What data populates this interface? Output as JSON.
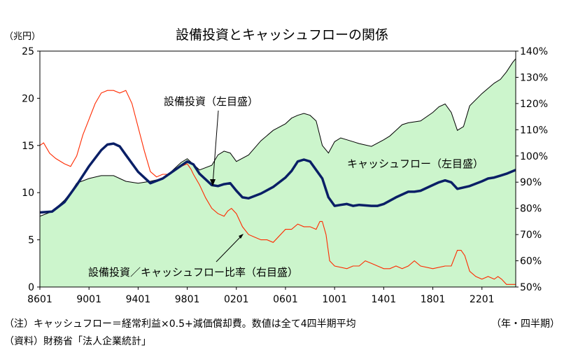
{
  "chart_data": {
    "type": "area",
    "title": "設備投資とキャッシュフローの関係",
    "left_unit": "（兆円）",
    "left_ylim": [
      0,
      25
    ],
    "left_ticks": [
      "0",
      "5",
      "10",
      "15",
      "20",
      "25"
    ],
    "right_ylim": [
      50,
      140
    ],
    "right_ticks": [
      "50%",
      "60%",
      "70%",
      "80%",
      "90%",
      "100%",
      "110%",
      "120%",
      "130%",
      "140%"
    ],
    "x_range": [
      1986.0,
      2024.75
    ],
    "x_ticks": [
      "8601",
      "9001",
      "9401",
      "9801",
      "0201",
      "0601",
      "1001",
      "1401",
      "1801",
      "2201"
    ],
    "x_unit": "（年・四半期）",
    "annotations": {
      "capex": "設備投資（左目盛）",
      "cashflow": "キャッシュフロー（左目盛）",
      "ratio": "設備投資／キャッシュフロー比率（右目盛）"
    },
    "note": "（注）キャッシュフロー＝経常利益×0.5+減価償却費。数値は全て4四半期平均",
    "source": "（資料）財務省「法人企業統計」",
    "colors": {
      "cashflow_fill": "#ccf5cc",
      "capex_line": "#0a1f66",
      "ratio_line": "#ff2a00"
    },
    "series": [
      {
        "name": "キャッシュフロー（左目盛）",
        "axis": "left",
        "style": "area",
        "x": [
          1986.0,
          1987.0,
          1988.0,
          1988.5,
          1989.0,
          1990.0,
          1991.0,
          1992.0,
          1992.5,
          1993.0,
          1994.0,
          1995.0,
          1996.0,
          1996.5,
          1997.0,
          1997.5,
          1998.0,
          1998.5,
          1999.0,
          2000.0,
          2000.5,
          2001.0,
          2001.5,
          2002.0,
          2003.0,
          2004.0,
          2005.0,
          2006.0,
          2006.5,
          2007.0,
          2007.5,
          2008.0,
          2008.5,
          2009.0,
          2009.5,
          2010.0,
          2010.5,
          2011.0,
          2012.0,
          2013.0,
          2014.0,
          2014.5,
          2015.0,
          2015.5,
          2016.0,
          2017.0,
          2018.0,
          2018.5,
          2019.0,
          2019.5,
          2020.0,
          2020.5,
          2021.0,
          2022.0,
          2023.0,
          2023.5,
          2024.0,
          2024.5,
          2024.75
        ],
        "values": [
          7.5,
          8.0,
          9.2,
          10.0,
          11.0,
          11.5,
          11.8,
          11.8,
          11.5,
          11.2,
          11.0,
          11.2,
          11.5,
          12.0,
          12.6,
          13.2,
          13.6,
          13.0,
          12.4,
          12.9,
          14.0,
          14.4,
          14.2,
          13.3,
          14.0,
          15.5,
          16.6,
          17.3,
          17.9,
          18.2,
          18.4,
          18.2,
          17.6,
          15.0,
          14.2,
          15.4,
          15.8,
          15.6,
          15.2,
          14.9,
          15.6,
          16.0,
          16.6,
          17.2,
          17.4,
          17.6,
          18.5,
          19.1,
          19.4,
          18.5,
          16.6,
          17.0,
          19.2,
          20.5,
          21.6,
          22.0,
          22.8,
          23.8,
          24.2
        ]
      },
      {
        "name": "設備投資（左目盛）",
        "axis": "left",
        "style": "line",
        "x": [
          1986.0,
          1987.0,
          1988.0,
          1989.0,
          1990.0,
          1991.0,
          1991.5,
          1992.0,
          1992.5,
          1993.0,
          1994.0,
          1995.0,
          1996.0,
          1997.0,
          1998.0,
          1998.5,
          1999.0,
          2000.0,
          2000.5,
          2001.0,
          2001.5,
          2002.0,
          2002.5,
          2003.0,
          2004.0,
          2005.0,
          2006.0,
          2006.5,
          2007.0,
          2007.5,
          2008.0,
          2009.0,
          2009.5,
          2010.0,
          2010.5,
          2011.0,
          2011.5,
          2012.0,
          2013.0,
          2013.5,
          2014.0,
          2015.0,
          2016.0,
          2016.5,
          2017.0,
          2018.0,
          2018.5,
          2019.0,
          2019.5,
          2020.0,
          2021.0,
          2022.0,
          2022.5,
          2023.0,
          2023.5,
          2024.0,
          2024.75
        ],
        "values": [
          7.9,
          8.0,
          9.0,
          10.8,
          12.8,
          14.5,
          15.1,
          15.2,
          14.9,
          14.0,
          12.2,
          11.0,
          11.5,
          12.4,
          13.3,
          13.0,
          12.0,
          10.8,
          10.7,
          10.9,
          11.0,
          10.2,
          9.5,
          9.4,
          9.9,
          10.6,
          11.6,
          12.3,
          13.3,
          13.5,
          13.3,
          11.5,
          9.5,
          8.6,
          8.7,
          8.8,
          8.6,
          8.7,
          8.6,
          8.6,
          8.8,
          9.5,
          10.1,
          10.1,
          10.2,
          10.8,
          11.1,
          11.3,
          11.1,
          10.4,
          10.7,
          11.2,
          11.5,
          11.6,
          11.8,
          12.0,
          12.4
        ]
      },
      {
        "name": "設備投資／キャッシュフロー比率（右目盛）",
        "axis": "right",
        "style": "line",
        "x": [
          1986.0,
          1986.3,
          1986.8,
          1987.3,
          1988.0,
          1988.5,
          1989.0,
          1989.5,
          1990.0,
          1990.5,
          1991.0,
          1991.5,
          1992.0,
          1992.5,
          1993.0,
          1993.5,
          1994.0,
          1994.5,
          1995.0,
          1995.5,
          1996.0,
          1996.5,
          1997.0,
          1997.5,
          1998.0,
          1998.3,
          1998.5,
          1999.0,
          1999.5,
          2000.0,
          2000.5,
          2001.0,
          2001.3,
          2001.6,
          2002.0,
          2002.5,
          2003.0,
          2003.5,
          2004.0,
          2004.5,
          2005.0,
          2006.0,
          2006.5,
          2007.0,
          2007.5,
          2008.0,
          2008.5,
          2008.8,
          2009.0,
          2009.3,
          2009.6,
          2010.0,
          2011.0,
          2011.5,
          2012.0,
          2012.5,
          2013.0,
          2014.0,
          2014.5,
          2015.0,
          2015.5,
          2016.0,
          2016.5,
          2017.0,
          2018.0,
          2019.0,
          2019.5,
          2020.0,
          2020.3,
          2020.6,
          2021.0,
          2021.5,
          2022.0,
          2022.5,
          2023.0,
          2023.3,
          2023.6,
          2024.0,
          2024.75
        ],
        "values": [
          104,
          105,
          101,
          99,
          97,
          96,
          100,
          108,
          114,
          120,
          124,
          125,
          125,
          124,
          125,
          120,
          111,
          102,
          94,
          92,
          93,
          93,
          95,
          96,
          97,
          95,
          93,
          89,
          84,
          80,
          78,
          77,
          79,
          80,
          78,
          73,
          70,
          69,
          68,
          68,
          67,
          72,
          72,
          74,
          73,
          73,
          72,
          75,
          75,
          70,
          60,
          58,
          57,
          58,
          58,
          60,
          59,
          57,
          57,
          58,
          57,
          58,
          60,
          58,
          57,
          58,
          58,
          64,
          64,
          62,
          56,
          54,
          53,
          54,
          53,
          54,
          53,
          51,
          51
        ]
      }
    ]
  }
}
